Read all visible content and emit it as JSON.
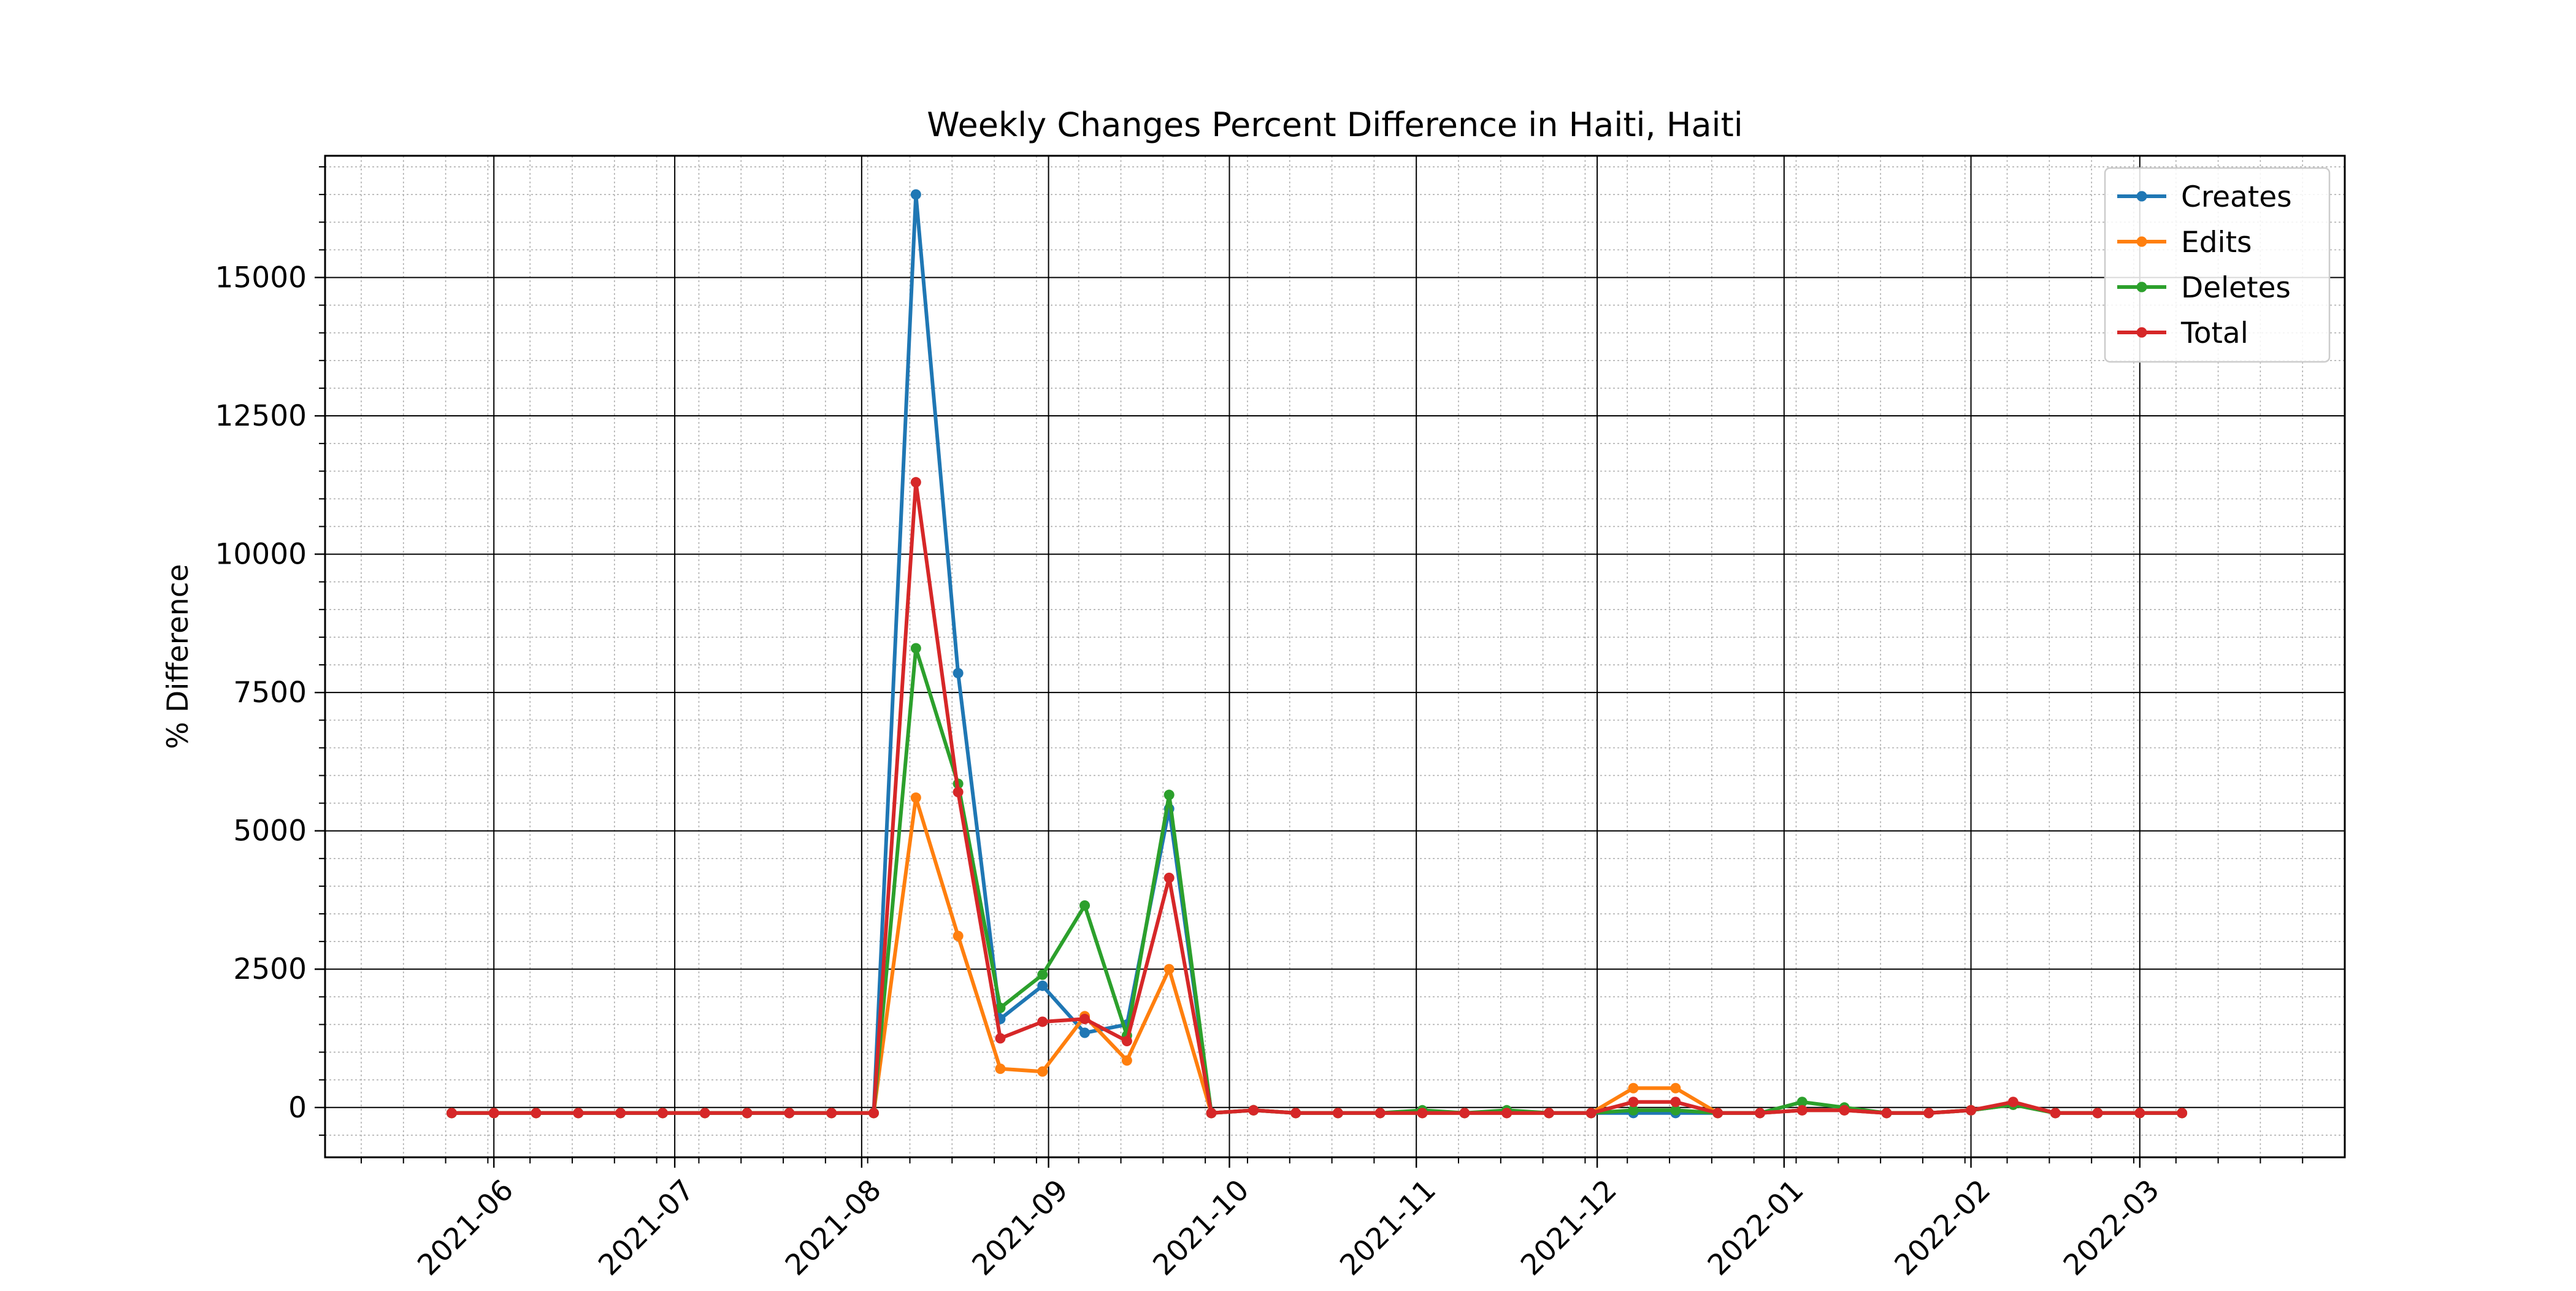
{
  "chart_data": {
    "type": "line",
    "title": "Weekly Changes Percent Difference in Haiti, Haiti",
    "xlabel": "",
    "ylabel": "% Difference",
    "x_axis_type": "date",
    "xlim": [
      "2021-05-04",
      "2022-04-04"
    ],
    "ylim": [
      -900,
      17200
    ],
    "x_tick_labels": [
      "2021-06",
      "2021-07",
      "2021-08",
      "2021-09",
      "2021-10",
      "2021-11",
      "2021-12",
      "2022-01",
      "2022-02",
      "2022-03"
    ],
    "x_tick_dates": [
      "2021-06-01",
      "2021-07-01",
      "2021-08-01",
      "2021-09-01",
      "2021-10-01",
      "2021-11-01",
      "2021-12-01",
      "2022-01-01",
      "2022-02-01",
      "2022-03-01"
    ],
    "y_ticks": [
      0,
      2500,
      5000,
      7500,
      10000,
      12500,
      15000
    ],
    "y_tick_labels": [
      "0",
      "2500",
      "5000",
      "7500",
      "10000",
      "12500",
      "15000"
    ],
    "grid": true,
    "minor_grid": true,
    "legend_position": "top-right",
    "x": [
      "2021-05-25",
      "2021-06-01",
      "2021-06-08",
      "2021-06-15",
      "2021-06-22",
      "2021-06-29",
      "2021-07-06",
      "2021-07-13",
      "2021-07-20",
      "2021-07-27",
      "2021-08-03",
      "2021-08-10",
      "2021-08-17",
      "2021-08-24",
      "2021-08-31",
      "2021-09-07",
      "2021-09-14",
      "2021-09-21",
      "2021-09-28",
      "2021-10-05",
      "2021-10-12",
      "2021-10-19",
      "2021-10-26",
      "2021-11-02",
      "2021-11-09",
      "2021-11-16",
      "2021-11-23",
      "2021-11-30",
      "2021-12-07",
      "2021-12-14",
      "2021-12-21",
      "2021-12-28",
      "2022-01-04",
      "2022-01-11",
      "2022-01-18",
      "2022-01-25",
      "2022-02-01",
      "2022-02-08",
      "2022-02-15",
      "2022-02-22",
      "2022-03-01",
      "2022-03-08"
    ],
    "series": [
      {
        "name": "Creates",
        "color": "#1f77b4",
        "values": [
          -100,
          -100,
          -100,
          -100,
          -100,
          -100,
          -100,
          -100,
          -100,
          -100,
          -100,
          16500,
          7850,
          1600,
          2200,
          1350,
          1500,
          5400,
          -100,
          -50,
          -100,
          -100,
          -100,
          -100,
          -100,
          -100,
          -100,
          -100,
          -100,
          -100,
          -100,
          -100,
          -50,
          -50,
          -100,
          -100,
          -50,
          50,
          -100,
          -100,
          -100,
          -100
        ]
      },
      {
        "name": "Edits",
        "color": "#ff7f0e",
        "values": [
          -100,
          -100,
          -100,
          -100,
          -100,
          -100,
          -100,
          -100,
          -100,
          -100,
          -100,
          5600,
          3100,
          700,
          650,
          1650,
          850,
          2500,
          -100,
          -50,
          -100,
          -100,
          -100,
          -100,
          -100,
          -100,
          -100,
          -100,
          350,
          350,
          -100,
          -100,
          -50,
          -50,
          -100,
          -100,
          -50,
          50,
          -100,
          -100,
          -100,
          -100
        ]
      },
      {
        "name": "Deletes",
        "color": "#2ca02c",
        "values": [
          -100,
          -100,
          -100,
          -100,
          -100,
          -100,
          -100,
          -100,
          -100,
          -100,
          -100,
          8300,
          5850,
          1800,
          2400,
          3650,
          1300,
          5650,
          -100,
          -50,
          -100,
          -100,
          -100,
          -50,
          -100,
          -50,
          -100,
          -100,
          -50,
          -50,
          -100,
          -100,
          100,
          0,
          -100,
          -100,
          -50,
          50,
          -100,
          -100,
          -100,
          -100
        ]
      },
      {
        "name": "Total",
        "color": "#d62728",
        "values": [
          -100,
          -100,
          -100,
          -100,
          -100,
          -100,
          -100,
          -100,
          -100,
          -100,
          -100,
          11300,
          5700,
          1250,
          1550,
          1600,
          1200,
          4150,
          -100,
          -50,
          -100,
          -100,
          -100,
          -100,
          -100,
          -100,
          -100,
          -100,
          100,
          100,
          -100,
          -100,
          -50,
          -50,
          -100,
          -100,
          -50,
          100,
          -100,
          -100,
          -100,
          -100
        ]
      }
    ]
  }
}
